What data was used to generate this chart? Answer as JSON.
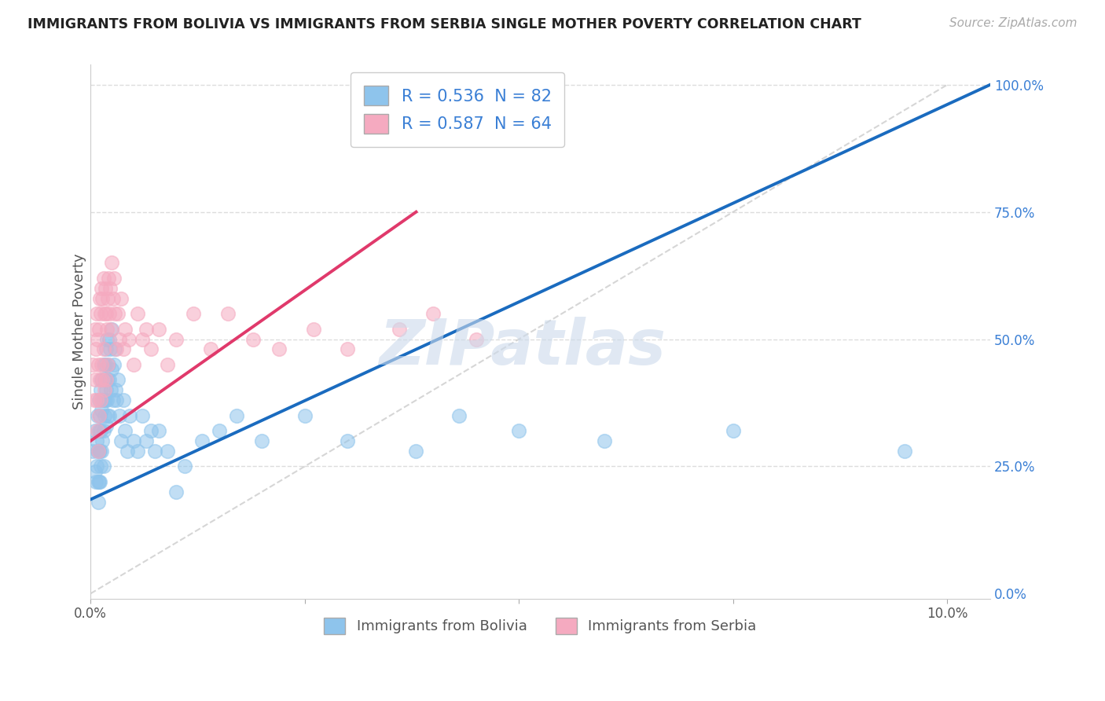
{
  "title": "IMMIGRANTS FROM BOLIVIA VS IMMIGRANTS FROM SERBIA SINGLE MOTHER POVERTY CORRELATION CHART",
  "source": "Source: ZipAtlas.com",
  "ylabel": "Single Mother Poverty",
  "legend_label1": "Immigrants from Bolivia",
  "legend_label2": "Immigrants from Serbia",
  "R1": 0.536,
  "N1": 82,
  "R2": 0.587,
  "N2": 64,
  "color_bolivia": "#8ec4ec",
  "color_serbia": "#f5aac0",
  "line_color_bolivia": "#1a6bbf",
  "line_color_serbia": "#e0396b",
  "ref_line_color": "#cccccc",
  "grid_color": "#dddddd",
  "xmin": 0.0,
  "xmax": 0.105,
  "ymin": -0.01,
  "ymax": 1.04,
  "watermark_text": "ZIPatlas",
  "bolivia_scatter_x": [
    0.0003,
    0.0005,
    0.0005,
    0.0006,
    0.0007,
    0.0007,
    0.0008,
    0.0008,
    0.0009,
    0.0009,
    0.001,
    0.001,
    0.001,
    0.001,
    0.0011,
    0.0011,
    0.0011,
    0.0012,
    0.0012,
    0.0012,
    0.0013,
    0.0013,
    0.0013,
    0.0014,
    0.0014,
    0.0015,
    0.0015,
    0.0015,
    0.0015,
    0.0016,
    0.0016,
    0.0017,
    0.0017,
    0.0018,
    0.0018,
    0.0018,
    0.0019,
    0.0019,
    0.002,
    0.002,
    0.0021,
    0.0022,
    0.0022,
    0.0022,
    0.0023,
    0.0024,
    0.0025,
    0.0025,
    0.0026,
    0.0027,
    0.0028,
    0.0029,
    0.003,
    0.0032,
    0.0034,
    0.0036,
    0.0038,
    0.004,
    0.0043,
    0.0046,
    0.005,
    0.0055,
    0.006,
    0.0065,
    0.007,
    0.0075,
    0.008,
    0.009,
    0.01,
    0.011,
    0.013,
    0.015,
    0.017,
    0.02,
    0.025,
    0.03,
    0.038,
    0.043,
    0.05,
    0.06,
    0.075,
    0.095
  ],
  "bolivia_scatter_y": [
    0.28,
    0.32,
    0.24,
    0.22,
    0.3,
    0.25,
    0.35,
    0.28,
    0.22,
    0.18,
    0.38,
    0.32,
    0.28,
    0.22,
    0.35,
    0.28,
    0.22,
    0.4,
    0.32,
    0.25,
    0.42,
    0.36,
    0.28,
    0.38,
    0.3,
    0.45,
    0.38,
    0.32,
    0.25,
    0.42,
    0.35,
    0.45,
    0.38,
    0.48,
    0.4,
    0.33,
    0.5,
    0.38,
    0.42,
    0.35,
    0.45,
    0.5,
    0.42,
    0.35,
    0.48,
    0.4,
    0.52,
    0.44,
    0.38,
    0.45,
    0.48,
    0.4,
    0.38,
    0.42,
    0.35,
    0.3,
    0.38,
    0.32,
    0.28,
    0.35,
    0.3,
    0.28,
    0.35,
    0.3,
    0.32,
    0.28,
    0.32,
    0.28,
    0.2,
    0.25,
    0.3,
    0.32,
    0.35,
    0.3,
    0.35,
    0.3,
    0.28,
    0.35,
    0.32,
    0.3,
    0.32,
    0.28
  ],
  "serbia_scatter_x": [
    0.0003,
    0.0004,
    0.0005,
    0.0005,
    0.0006,
    0.0007,
    0.0007,
    0.0008,
    0.0008,
    0.0009,
    0.0009,
    0.001,
    0.001,
    0.0011,
    0.0011,
    0.0012,
    0.0012,
    0.0013,
    0.0013,
    0.0014,
    0.0014,
    0.0015,
    0.0015,
    0.0016,
    0.0016,
    0.0017,
    0.0018,
    0.0018,
    0.0019,
    0.002,
    0.002,
    0.0021,
    0.0022,
    0.0023,
    0.0024,
    0.0025,
    0.0026,
    0.0027,
    0.0028,
    0.003,
    0.0032,
    0.0034,
    0.0036,
    0.0038,
    0.004,
    0.0045,
    0.005,
    0.0055,
    0.006,
    0.0065,
    0.007,
    0.008,
    0.009,
    0.01,
    0.012,
    0.014,
    0.016,
    0.019,
    0.022,
    0.026,
    0.03,
    0.036,
    0.04,
    0.045
  ],
  "serbia_scatter_y": [
    0.45,
    0.38,
    0.52,
    0.42,
    0.48,
    0.55,
    0.38,
    0.5,
    0.32,
    0.45,
    0.28,
    0.52,
    0.35,
    0.58,
    0.42,
    0.55,
    0.38,
    0.6,
    0.45,
    0.58,
    0.42,
    0.62,
    0.48,
    0.55,
    0.4,
    0.6,
    0.55,
    0.42,
    0.52,
    0.58,
    0.45,
    0.62,
    0.55,
    0.6,
    0.52,
    0.65,
    0.58,
    0.62,
    0.55,
    0.48,
    0.55,
    0.5,
    0.58,
    0.48,
    0.52,
    0.5,
    0.45,
    0.55,
    0.5,
    0.52,
    0.48,
    0.52,
    0.45,
    0.5,
    0.55,
    0.48,
    0.55,
    0.5,
    0.48,
    0.52,
    0.48,
    0.52,
    0.55,
    0.5
  ],
  "bolivia_regline_x": [
    0.0,
    0.105
  ],
  "bolivia_regline_y": [
    0.185,
    1.0
  ],
  "serbia_regline_x": [
    0.0,
    0.038
  ],
  "serbia_regline_y": [
    0.3,
    0.75
  ]
}
